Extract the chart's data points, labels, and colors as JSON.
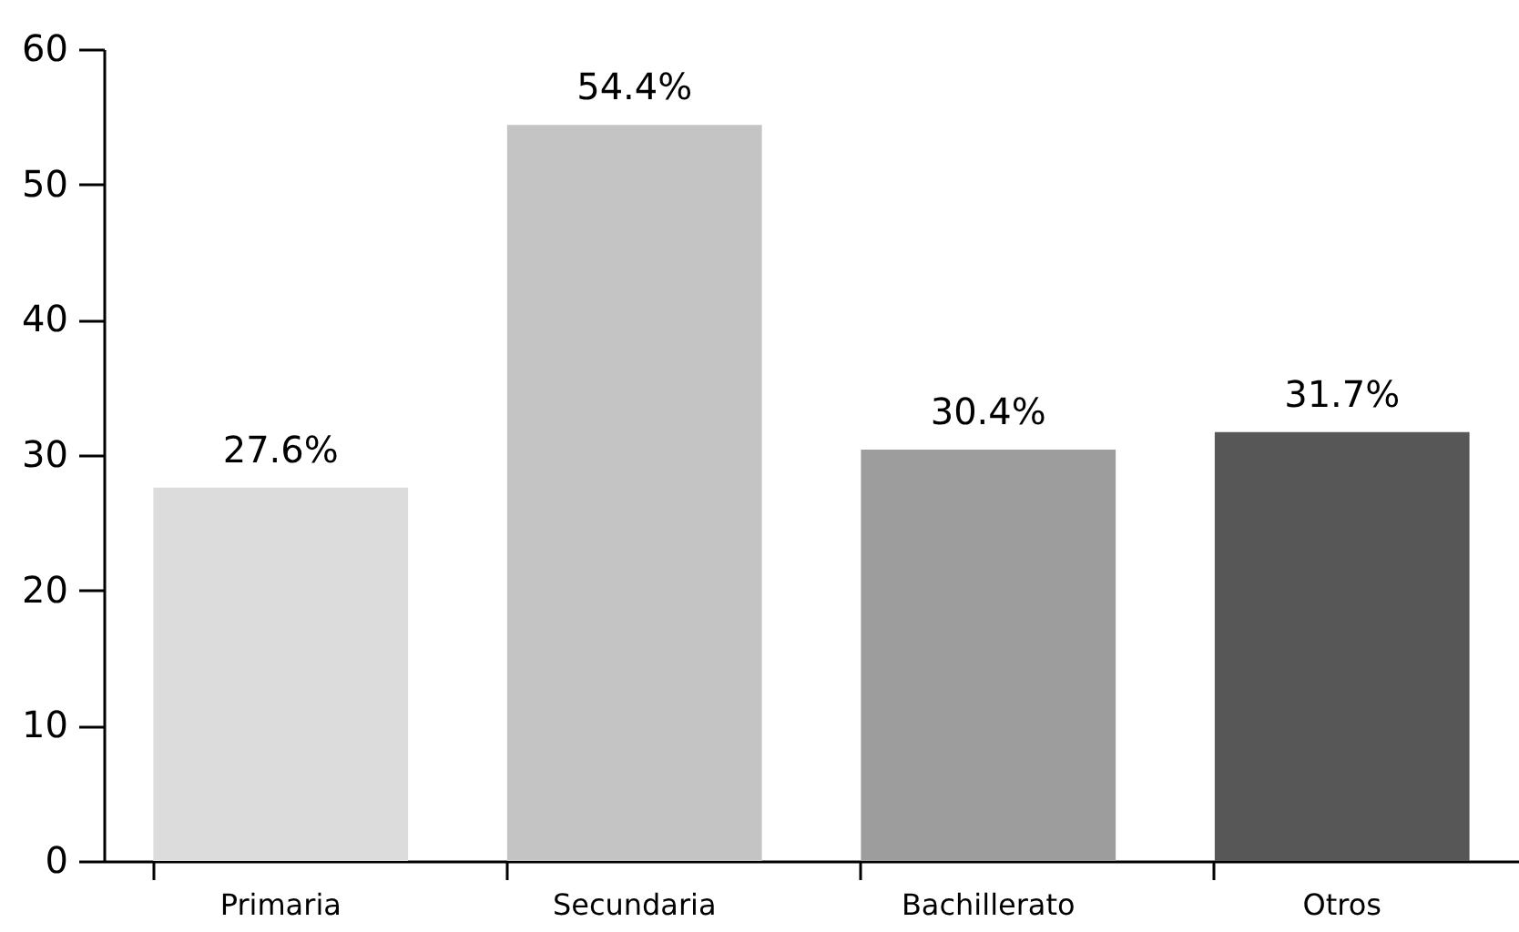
{
  "chart_data": {
    "type": "bar",
    "categories": [
      "Primaria",
      "Secundaria",
      "Bachillerato",
      "Otros"
    ],
    "values": [
      27.6,
      54.4,
      30.4,
      31.7
    ],
    "colors": [
      "#dcdcdc",
      "#c4c4c4",
      "#9d9d9d",
      "#575757"
    ],
    "value_labels": [
      "27.6%",
      "54.4%",
      "30.4%",
      "31.7%"
    ],
    "ylim": [
      0,
      60
    ],
    "yticks": [
      0,
      10,
      20,
      30,
      40,
      50,
      60
    ],
    "grid": false,
    "legend": false
  }
}
